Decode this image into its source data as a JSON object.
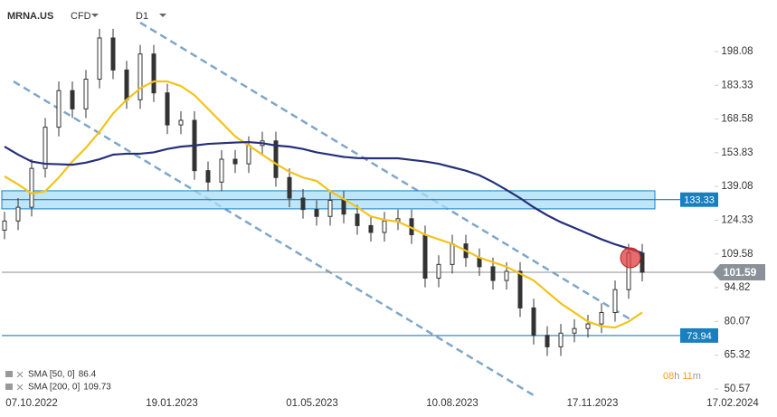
{
  "chart_data": {
    "type": "candlestick",
    "symbol": "MRNA.US",
    "instrument_type": "CFD",
    "timeframe": "D1",
    "x_labels": [
      "07.10.2022",
      "19.01.2023",
      "01.05.2023",
      "10.08.2023",
      "17.11.2023",
      "17.02.2024"
    ],
    "ylim": [
      48.6,
      220.6
    ],
    "yticks": [
      198.08,
      183.33,
      168.58,
      153.83,
      139.08,
      124.33,
      109.58,
      94.82,
      80.07,
      65.32,
      50.57
    ],
    "candles": {
      "open": [
        120,
        124,
        130,
        147,
        165,
        181,
        173,
        186,
        204,
        190,
        177,
        197,
        180,
        166,
        168,
        146,
        141,
        151,
        149,
        157,
        159,
        143,
        134,
        129,
        126,
        133,
        127,
        122,
        119,
        124,
        125,
        118,
        99,
        105,
        114,
        108,
        104,
        98,
        102,
        86,
        74,
        69,
        75,
        77,
        79,
        84,
        94,
        110
      ],
      "high": [
        128,
        134,
        151,
        169,
        185,
        185,
        190,
        208,
        208,
        194,
        201,
        201,
        184,
        172,
        172,
        150,
        155,
        155,
        161,
        163,
        163,
        147,
        138,
        133,
        137,
        137,
        131,
        126,
        128,
        129,
        129,
        122,
        109,
        118,
        118,
        112,
        108,
        106,
        106,
        90,
        78,
        79,
        81,
        83,
        88,
        98,
        114,
        114
      ],
      "low": [
        116,
        120,
        126,
        143,
        161,
        169,
        169,
        182,
        186,
        173,
        173,
        176,
        162,
        162,
        142,
        137,
        137,
        145,
        145,
        153,
        139,
        130,
        125,
        122,
        122,
        123,
        118,
        115,
        115,
        120,
        114,
        95,
        95,
        101,
        104,
        100,
        94,
        94,
        82,
        70,
        65,
        65,
        71,
        73,
        75,
        80,
        90,
        97.59
      ],
      "close": [
        124,
        130,
        147,
        165,
        181,
        173,
        186,
        204,
        190,
        177,
        197,
        180,
        166,
        168,
        146,
        141,
        151,
        149,
        157,
        159,
        143,
        134,
        129,
        126,
        133,
        127,
        122,
        119,
        124,
        125,
        118,
        99,
        105,
        114,
        108,
        104,
        98,
        102,
        86,
        74,
        69,
        75,
        77,
        79,
        84,
        94,
        110,
        101.59
      ],
      "color": "#333333"
    },
    "series": [
      {
        "name": "SMA [50, 0]",
        "last_value": 86.4,
        "color": "#f2c31b",
        "values": [
          143.5,
          140,
          136,
          137,
          143,
          150,
          156,
          163,
          171,
          177,
          182,
          185,
          185,
          183,
          179,
          173,
          167,
          161,
          157,
          153,
          149,
          145.5,
          143,
          141.5,
          137,
          133.6,
          130,
          126,
          124.5,
          123.7,
          121,
          118,
          116,
          114,
          111,
          108,
          106,
          104,
          101,
          98,
          93,
          88,
          84,
          80,
          78,
          77.4,
          80,
          84
        ]
      },
      {
        "name": "SMA [200, 0]",
        "last_value": 109.73,
        "color": "#26307a",
        "values": [
          156.5,
          153,
          150,
          149,
          148.8,
          148.6,
          149.5,
          151,
          153,
          153.4,
          153.4,
          154,
          155.5,
          156.5,
          157,
          157.7,
          158,
          158.3,
          158.5,
          158,
          157,
          156.5,
          155.5,
          154,
          153,
          152,
          151.5,
          151.4,
          151.4,
          151.4,
          150.7,
          150,
          149,
          147.5,
          146,
          144,
          141,
          137.6,
          134,
          130,
          126.5,
          123.5,
          121,
          118.5,
          116,
          113.8,
          112,
          110
        ]
      }
    ],
    "zone": {
      "low": 129.3,
      "high": 137.2,
      "color": "#a9dcf5"
    },
    "levels": [
      {
        "value": 133.33,
        "color": "#1a7fbf"
      },
      {
        "value": 73.94,
        "color": "#1a7fbf"
      }
    ],
    "last_price": {
      "value": 101.59,
      "color": "#8a9199"
    },
    "countdown": {
      "hours": "08",
      "hours_unit": "h",
      "minutes": "11",
      "minutes_unit": "m"
    }
  }
}
